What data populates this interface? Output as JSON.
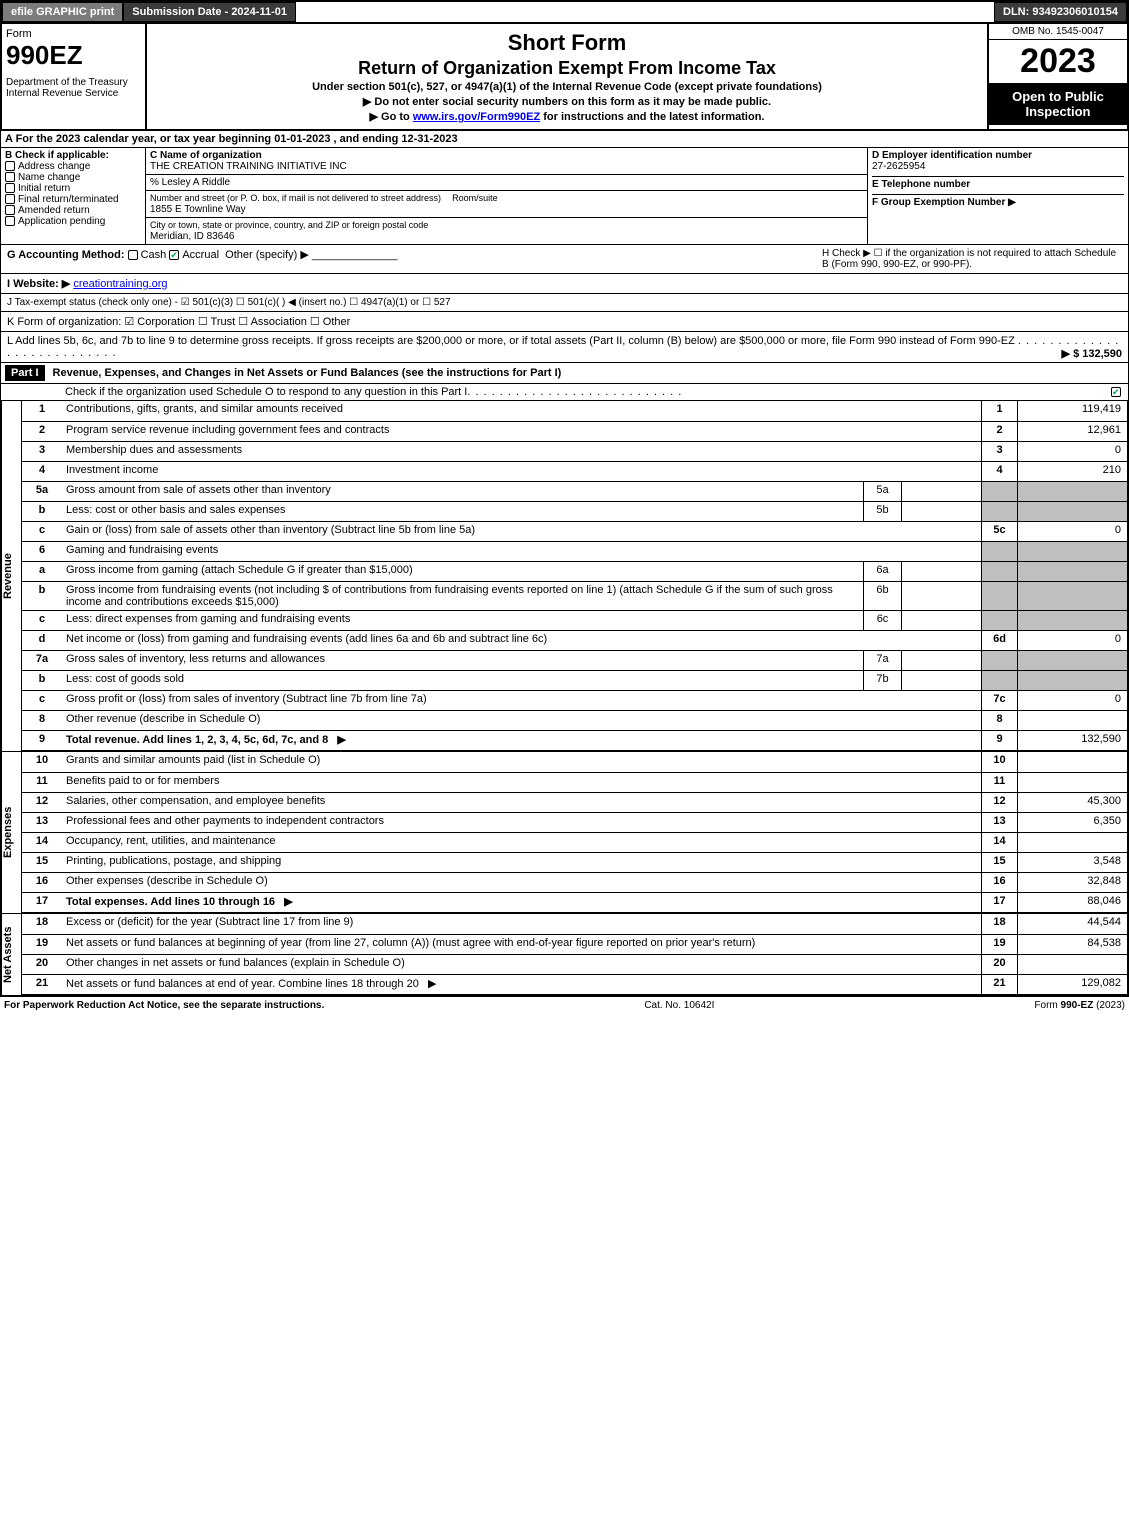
{
  "topbar": {
    "efile": "efile GRAPHIC print",
    "submission": "Submission Date - 2024-11-01",
    "dln": "DLN: 93492306010154"
  },
  "header": {
    "form_label": "Form",
    "form_number": "990EZ",
    "dept": "Department of the Treasury\nInternal Revenue Service",
    "title1": "Short Form",
    "title2": "Return of Organization Exempt From Income Tax",
    "subtitle": "Under section 501(c), 527, or 4947(a)(1) of the Internal Revenue Code (except private foundations)",
    "note1": "▶ Do not enter social security numbers on this form as it may be made public.",
    "note2_pre": "▶ Go to ",
    "note2_link": "www.irs.gov/Form990EZ",
    "note2_post": " for instructions and the latest information.",
    "omb": "OMB No. 1545-0047",
    "year": "2023",
    "inspection": "Open to Public Inspection"
  },
  "sectionA": "A  For the 2023 calendar year, or tax year beginning 01-01-2023 , and ending 12-31-2023",
  "sectionB": {
    "label": "B  Check if applicable:",
    "items": [
      "Address change",
      "Name change",
      "Initial return",
      "Final return/terminated",
      "Amended return",
      "Application pending"
    ]
  },
  "sectionC": {
    "label": "C Name of organization",
    "org": "THE CREATION TRAINING INITIATIVE INC",
    "care_of": "% Lesley A Riddle",
    "street_lbl": "Number and street (or P. O. box, if mail is not delivered to street address)",
    "room_lbl": "Room/suite",
    "street": "1855 E Townline Way",
    "city_lbl": "City or town, state or province, country, and ZIP or foreign postal code",
    "city": "Meridian, ID  83646"
  },
  "sectionD": {
    "label": "D Employer identification number",
    "ein": "27-2625954",
    "tel_lbl": "E Telephone number",
    "tel": "",
    "grp_lbl": "F Group Exemption Number  ▶",
    "grp": ""
  },
  "sectionG": {
    "label": "G Accounting Method:",
    "cash": "Cash",
    "accrual": "Accrual",
    "other": "Other (specify) ▶"
  },
  "sectionH": "H  Check ▶  ☐  if the organization is not required to attach Schedule B (Form 990, 990-EZ, or 990-PF).",
  "sectionI": {
    "label": "I Website: ▶",
    "value": "creationtraining.org"
  },
  "sectionJ": "J Tax-exempt status (check only one) - ☑ 501(c)(3)  ☐ 501(c)(  ) ◀ (insert no.)  ☐ 4947(a)(1) or  ☐ 527",
  "sectionK": "K Form of organization:  ☑ Corporation   ☐ Trust   ☐ Association   ☐ Other",
  "sectionL": {
    "text": "L Add lines 5b, 6c, and 7b to line 9 to determine gross receipts. If gross receipts are $200,000 or more, or if total assets (Part II, column (B) below) are $500,000 or more, file Form 990 instead of Form 990-EZ",
    "amount": "▶ $ 132,590"
  },
  "part1": {
    "header": "Part I",
    "title": "Revenue, Expenses, and Changes in Net Assets or Fund Balances (see the instructions for Part I)",
    "check_text": "Check if the organization used Schedule O to respond to any question in this Part I"
  },
  "revenue": {
    "label": "Revenue",
    "rows": [
      {
        "n": "1",
        "d": "Contributions, gifts, grants, and similar amounts received",
        "rn": "1",
        "rv": "119,419"
      },
      {
        "n": "2",
        "d": "Program service revenue including government fees and contracts",
        "rn": "2",
        "rv": "12,961"
      },
      {
        "n": "3",
        "d": "Membership dues and assessments",
        "rn": "3",
        "rv": "0"
      },
      {
        "n": "4",
        "d": "Investment income",
        "rn": "4",
        "rv": "210"
      },
      {
        "n": "5a",
        "d": "Gross amount from sale of assets other than inventory",
        "in": "5a",
        "iv": "",
        "shadeR": true
      },
      {
        "n": "b",
        "d": "Less: cost or other basis and sales expenses",
        "in": "5b",
        "iv": "",
        "shadeR": true
      },
      {
        "n": "c",
        "d": "Gain or (loss) from sale of assets other than inventory (Subtract line 5b from line 5a)",
        "rn": "5c",
        "rv": "0"
      },
      {
        "n": "6",
        "d": "Gaming and fundraising events",
        "shadeR": true,
        "noR": true
      },
      {
        "n": "a",
        "d": "Gross income from gaming (attach Schedule G if greater than $15,000)",
        "in": "6a",
        "iv": "",
        "shadeR": true
      },
      {
        "n": "b",
        "d": "Gross income from fundraising events (not including $                of contributions from fundraising events reported on line 1) (attach Schedule G if the sum of such gross income and contributions exceeds $15,000)",
        "in": "6b",
        "iv": "",
        "shadeR": true
      },
      {
        "n": "c",
        "d": "Less: direct expenses from gaming and fundraising events",
        "in": "6c",
        "iv": "",
        "shadeR": true
      },
      {
        "n": "d",
        "d": "Net income or (loss) from gaming and fundraising events (add lines 6a and 6b and subtract line 6c)",
        "rn": "6d",
        "rv": "0"
      },
      {
        "n": "7a",
        "d": "Gross sales of inventory, less returns and allowances",
        "in": "7a",
        "iv": "",
        "shadeR": true
      },
      {
        "n": "b",
        "d": "Less: cost of goods sold",
        "in": "7b",
        "iv": "",
        "shadeR": true
      },
      {
        "n": "c",
        "d": "Gross profit or (loss) from sales of inventory (Subtract line 7b from line 7a)",
        "rn": "7c",
        "rv": "0"
      },
      {
        "n": "8",
        "d": "Other revenue (describe in Schedule O)",
        "rn": "8",
        "rv": ""
      },
      {
        "n": "9",
        "d": "Total revenue. Add lines 1, 2, 3, 4, 5c, 6d, 7c, and 8",
        "rn": "9",
        "rv": "132,590",
        "bold": true,
        "arrow": true
      }
    ]
  },
  "expenses": {
    "label": "Expenses",
    "rows": [
      {
        "n": "10",
        "d": "Grants and similar amounts paid (list in Schedule O)",
        "rn": "10",
        "rv": ""
      },
      {
        "n": "11",
        "d": "Benefits paid to or for members",
        "rn": "11",
        "rv": ""
      },
      {
        "n": "12",
        "d": "Salaries, other compensation, and employee benefits",
        "rn": "12",
        "rv": "45,300"
      },
      {
        "n": "13",
        "d": "Professional fees and other payments to independent contractors",
        "rn": "13",
        "rv": "6,350"
      },
      {
        "n": "14",
        "d": "Occupancy, rent, utilities, and maintenance",
        "rn": "14",
        "rv": ""
      },
      {
        "n": "15",
        "d": "Printing, publications, postage, and shipping",
        "rn": "15",
        "rv": "3,548"
      },
      {
        "n": "16",
        "d": "Other expenses (describe in Schedule O)",
        "rn": "16",
        "rv": "32,848"
      },
      {
        "n": "17",
        "d": "Total expenses. Add lines 10 through 16",
        "rn": "17",
        "rv": "88,046",
        "bold": true,
        "arrow": true
      }
    ]
  },
  "netassets": {
    "label": "Net Assets",
    "rows": [
      {
        "n": "18",
        "d": "Excess or (deficit) for the year (Subtract line 17 from line 9)",
        "rn": "18",
        "rv": "44,544"
      },
      {
        "n": "19",
        "d": "Net assets or fund balances at beginning of year (from line 27, column (A)) (must agree with end-of-year figure reported on prior year's return)",
        "rn": "19",
        "rv": "84,538"
      },
      {
        "n": "20",
        "d": "Other changes in net assets or fund balances (explain in Schedule O)",
        "rn": "20",
        "rv": ""
      },
      {
        "n": "21",
        "d": "Net assets or fund balances at end of year. Combine lines 18 through 20",
        "rn": "21",
        "rv": "129,082",
        "arrow": true
      }
    ]
  },
  "footer": {
    "left": "For Paperwork Reduction Act Notice, see the separate instructions.",
    "mid": "Cat. No. 10642I",
    "right": "Form 990-EZ (2023)"
  }
}
